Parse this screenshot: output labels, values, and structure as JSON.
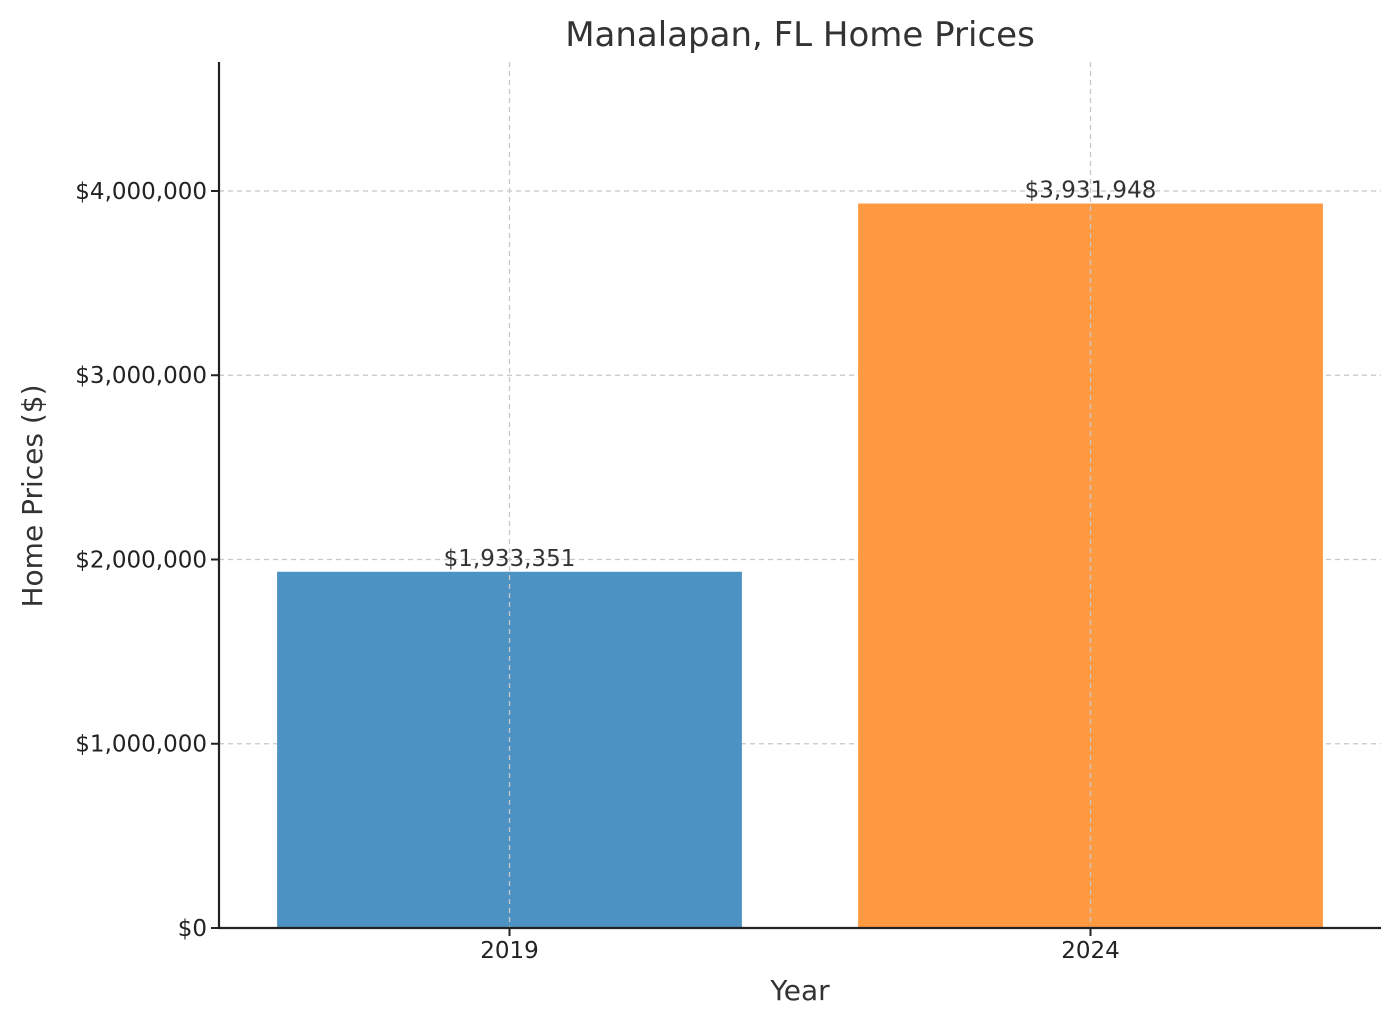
{
  "chart_data": {
    "type": "bar",
    "title": "Manalapan, FL Home Prices",
    "xlabel": "Year",
    "ylabel": "Home Prices ($)",
    "categories": [
      "2019",
      "2024"
    ],
    "values": [
      1933351,
      3931948
    ],
    "data_labels": [
      "$1,933,351",
      "$3,931,948"
    ],
    "bar_colors": [
      "#4c92c3",
      "#ff9a42"
    ],
    "ylim": [
      0,
      4700000
    ],
    "yticks": [
      0,
      1000000,
      2000000,
      3000000,
      4000000
    ],
    "ytick_labels": [
      "$0",
      "$1,000,000",
      "$2,000,000",
      "$3,000,000",
      "$4,000,000"
    ],
    "grid": true,
    "legend": false
  }
}
